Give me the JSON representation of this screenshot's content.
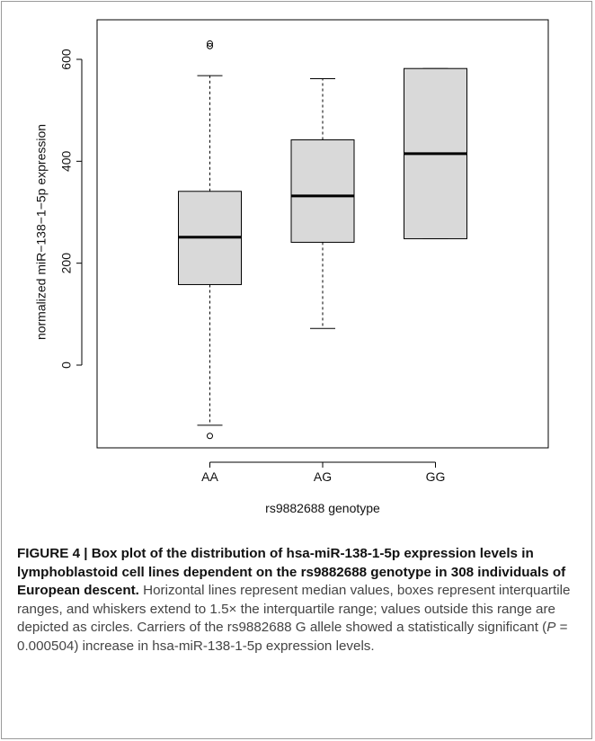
{
  "chart_data": {
    "type": "box",
    "xlabel": "rs9882688 genotype",
    "ylabel": "normalized miR−138−1−5p expression",
    "categories": [
      "AA",
      "AG",
      "GG"
    ],
    "yticks": [
      "0",
      "200",
      "400",
      "600"
    ],
    "ylim": [
      -165,
      675
    ],
    "boxes": [
      {
        "category": "AA",
        "whisker_low": -118,
        "q1": 158,
        "median": 251,
        "q3": 341,
        "whisker_high": 568,
        "outliers": [
          -139,
          626,
          631
        ]
      },
      {
        "category": "AG",
        "whisker_low": 72,
        "q1": 241,
        "median": 332,
        "q3": 442,
        "whisker_high": 562,
        "outliers": []
      },
      {
        "category": "GG",
        "whisker_low": 248,
        "q1": 248,
        "median": 415,
        "q3": 582,
        "whisker_high": 582,
        "outliers": []
      }
    ],
    "box_fill": "#d9d9d9",
    "line_color": "#000000"
  },
  "caption": {
    "title": "FIGURE 4 | Box plot of the distribution of hsa-miR-138-1-5p expression levels in lymphoblastoid cell lines dependent on the rs9882688 genotype in 308 individuals of European descent.",
    "body_before_p": " Horizontal lines represent median values, boxes represent interquartile ranges, and whiskers extend to 1.5× the interquartile range; values outside this range are depicted as circles. Carriers of the rs9882688 G allele showed a statistically significant (",
    "p_symbol": "P",
    "p_value": " = 0.000504",
    "body_after_p": ") increase in hsa-miR-138-1-5p expression levels."
  }
}
